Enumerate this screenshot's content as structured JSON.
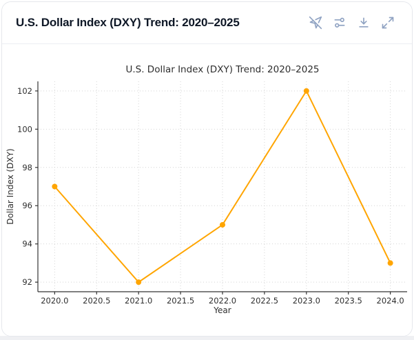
{
  "header": {
    "title": "U.S. Dollar Index (DXY) Trend: 2020–2025",
    "toolbar": [
      {
        "name": "pointer-off-icon",
        "action": "disable-interaction"
      },
      {
        "name": "sliders-icon",
        "action": "chart-settings"
      },
      {
        "name": "download-icon",
        "action": "download"
      },
      {
        "name": "expand-icon",
        "action": "expand"
      }
    ]
  },
  "colors": {
    "line": "#FFA500",
    "icon": "#8fa2c2",
    "card_border": "#e5e7ec",
    "divider": "#eceef2",
    "header_text": "#0e1726",
    "chart_text": "#2e2e2e",
    "grid": "#d4d4d4",
    "spine": "#333333"
  },
  "chart_data": {
    "type": "line",
    "title": "U.S. Dollar Index (DXY) Trend: 2020–2025",
    "xlabel": "Year",
    "ylabel": "Dollar Index (DXY)",
    "x": [
      2020,
      2021,
      2022,
      2023,
      2024
    ],
    "y": [
      97,
      92,
      95,
      102,
      93
    ],
    "series": [
      {
        "name": "DXY",
        "values": [
          97,
          92,
          95,
          102,
          93
        ]
      }
    ],
    "x_ticks": [
      2020.0,
      2020.5,
      2021.0,
      2021.5,
      2022.0,
      2022.5,
      2023.0,
      2023.5,
      2024.0
    ],
    "x_tick_labels": [
      "2020.0",
      "2020.5",
      "2021.0",
      "2021.5",
      "2022.0",
      "2022.5",
      "2023.0",
      "2023.5",
      "2024.0"
    ],
    "y_ticks": [
      92,
      94,
      96,
      98,
      100,
      102
    ],
    "y_tick_labels": [
      "92",
      "94",
      "96",
      "98",
      "100",
      "102"
    ],
    "xlim": [
      2019.8,
      2024.2
    ],
    "ylim": [
      91.5,
      102.5
    ],
    "grid": true,
    "grid_style": "dotted",
    "legend": false,
    "line_color": "#FFA500",
    "marker": "o"
  }
}
